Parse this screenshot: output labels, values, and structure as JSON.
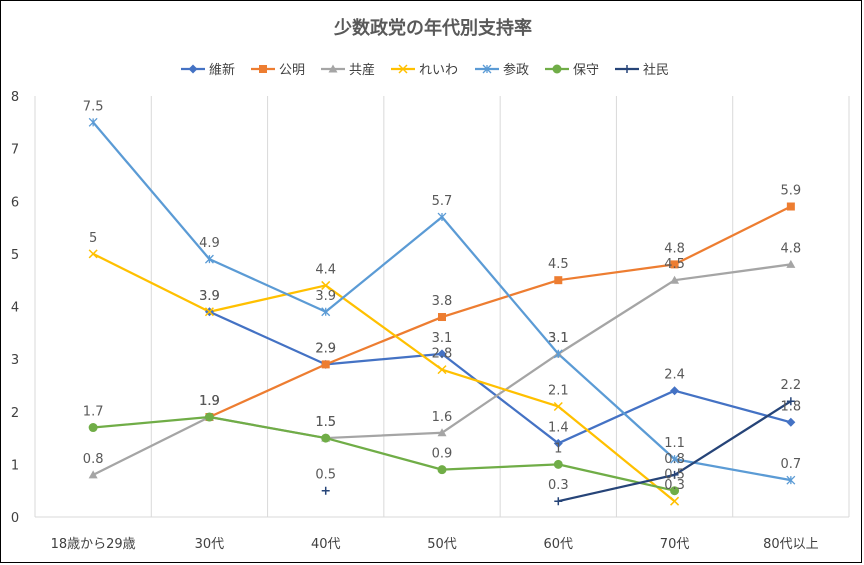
{
  "chart_data": {
    "type": "line",
    "title": "少数政党の年代別支持率",
    "xlabel": "",
    "ylabel": "",
    "categories": [
      "18歳から29歳",
      "30代",
      "40代",
      "50代",
      "60代",
      "70代",
      "80代以上"
    ],
    "ylim": [
      0,
      8
    ],
    "yticks": [
      0,
      1,
      2,
      3,
      4,
      5,
      6,
      7,
      8
    ],
    "grid": "vertical",
    "legend": "top",
    "series": [
      {
        "name": "維新",
        "color": "#4472C4",
        "marker": "diamond",
        "values": [
          null,
          3.9,
          2.9,
          3.1,
          1.4,
          2.4,
          1.8
        ],
        "labels": [
          null,
          "3.9",
          "2.9",
          "3.1",
          "1.4",
          "2.4",
          "1.8"
        ]
      },
      {
        "name": "公明",
        "color": "#ED7D31",
        "marker": "square",
        "values": [
          null,
          1.9,
          2.9,
          3.8,
          4.5,
          4.8,
          5.9
        ],
        "labels": [
          null,
          "1.9",
          "2.9",
          "3.8",
          "4.5",
          "4.8",
          "5.9"
        ]
      },
      {
        "name": "共産",
        "color": "#A5A5A5",
        "marker": "triangle",
        "values": [
          0.8,
          1.9,
          1.5,
          1.6,
          3.1,
          4.5,
          4.8
        ],
        "labels": [
          "0.8",
          "1.9",
          "1.5",
          "1.6",
          "3.1",
          "4.5",
          "4.8"
        ]
      },
      {
        "name": "れいわ",
        "color": "#FFC000",
        "marker": "x",
        "values": [
          5,
          3.9,
          4.4,
          2.8,
          2.1,
          0.3,
          null
        ],
        "labels": [
          "5",
          "3.9",
          "4.4",
          "2.8",
          "2.1",
          "0.3",
          null
        ]
      },
      {
        "name": "参政",
        "color": "#5B9BD5",
        "marker": "star",
        "values": [
          7.5,
          4.9,
          3.9,
          5.7,
          3.1,
          1.1,
          0.7
        ],
        "labels": [
          "7.5",
          "4.9",
          "3.9",
          "5.7",
          "3.1",
          "1.1",
          "0.7"
        ]
      },
      {
        "name": "保守",
        "color": "#70AD47",
        "marker": "circle",
        "values": [
          1.7,
          1.9,
          1.5,
          0.9,
          1,
          0.5,
          null
        ],
        "labels": [
          "1.7",
          "1.9",
          "1.5",
          "0.9",
          "1",
          "0.5",
          null
        ]
      },
      {
        "name": "社民",
        "color": "#264478",
        "marker": "plus",
        "values": [
          null,
          null,
          0.5,
          null,
          0.3,
          0.8,
          2.2
        ],
        "labels": [
          null,
          null,
          "0.5",
          null,
          "0.3",
          "0.8",
          "2.2"
        ]
      }
    ]
  }
}
